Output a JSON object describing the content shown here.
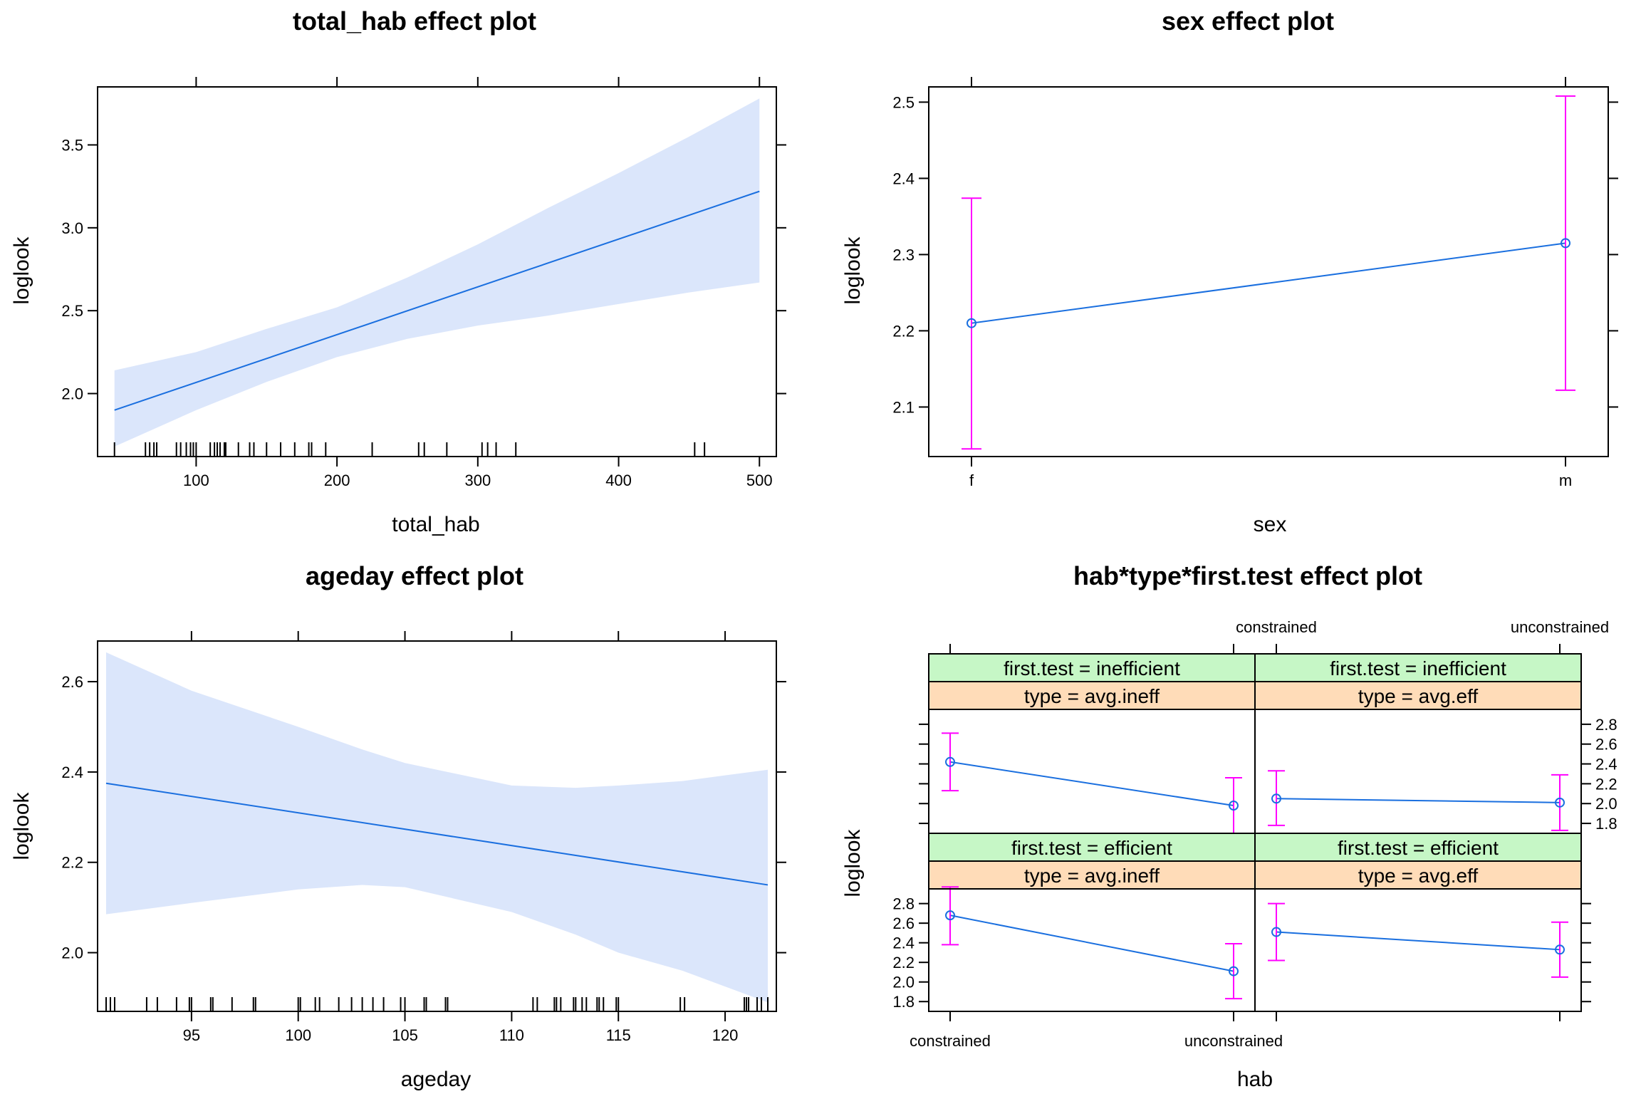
{
  "colors": {
    "line": "#1a6fdf",
    "band": "#dbe6fb",
    "errorbar": "#ff00ff",
    "strip_top": "#c6f7c6",
    "strip_bottom": "#ffdcb8",
    "frame": "#000000"
  },
  "chart_data": [
    {
      "id": "total_hab",
      "type": "line",
      "title": "total_hab effect plot",
      "xlabel": "total_hab",
      "ylabel": "loglook",
      "xlim": [
        30,
        512
      ],
      "ylim": [
        1.62,
        3.85
      ],
      "xticks": [
        100,
        200,
        300,
        400,
        500
      ],
      "yticks": [
        2.0,
        2.5,
        3.0,
        3.5
      ],
      "ytick_labels": [
        "2.0",
        "2.5",
        "3.0",
        "3.5"
      ],
      "line": {
        "x": [
          42,
          500
        ],
        "y": [
          1.9,
          3.22
        ]
      },
      "band": {
        "x": [
          42,
          100,
          150,
          200,
          250,
          300,
          350,
          400,
          450,
          500
        ],
        "lower": [
          1.68,
          1.9,
          2.07,
          2.22,
          2.33,
          2.41,
          2.47,
          2.54,
          2.61,
          2.67
        ],
        "upper": [
          2.14,
          2.25,
          2.39,
          2.52,
          2.7,
          2.9,
          3.12,
          3.33,
          3.55,
          3.78
        ]
      },
      "rug": [
        42,
        64,
        67,
        70,
        72,
        86,
        89,
        93,
        96,
        98,
        100,
        110,
        113,
        115,
        117,
        120,
        121,
        130,
        138,
        141,
        150,
        160,
        170,
        180,
        182,
        192,
        225,
        258,
        262,
        278,
        303,
        307,
        313,
        327,
        454,
        461
      ]
    },
    {
      "id": "sex",
      "type": "line",
      "title": "sex effect plot",
      "xlabel": "sex",
      "ylabel": "loglook",
      "categories": [
        "f",
        "m"
      ],
      "ylim": [
        2.035,
        2.52
      ],
      "yticks": [
        2.1,
        2.2,
        2.3,
        2.4,
        2.5
      ],
      "ytick_labels": [
        "2.1",
        "2.2",
        "2.3",
        "2.4",
        "2.5"
      ],
      "values": [
        2.21,
        2.315
      ],
      "lower": [
        2.045,
        2.122
      ],
      "upper": [
        2.374,
        2.508
      ]
    },
    {
      "id": "ageday",
      "type": "line",
      "title": "ageday effect plot",
      "xlabel": "ageday",
      "ylabel": "loglook",
      "xlim": [
        90.6,
        122.4
      ],
      "ylim": [
        1.87,
        2.69
      ],
      "xticks": [
        95,
        100,
        105,
        110,
        115,
        120
      ],
      "yticks": [
        2.0,
        2.2,
        2.4,
        2.6
      ],
      "ytick_labels": [
        "2.0",
        "2.2",
        "2.4",
        "2.6"
      ],
      "line": {
        "x": [
          91,
          122
        ],
        "y": [
          2.375,
          2.15
        ]
      },
      "band": {
        "x": [
          91,
          95,
          100,
          103,
          105,
          110,
          113,
          115,
          118,
          122
        ],
        "lower": [
          2.085,
          2.11,
          2.14,
          2.15,
          2.145,
          2.09,
          2.04,
          2.0,
          1.96,
          1.89
        ],
        "upper": [
          2.665,
          2.58,
          2.5,
          2.45,
          2.42,
          2.37,
          2.365,
          2.37,
          2.38,
          2.405
        ]
      },
      "rug": [
        91,
        91.2,
        91.4,
        92.9,
        93.4,
        94.3,
        94.9,
        95,
        95.9,
        96,
        96.9,
        97.9,
        98,
        100,
        100.1,
        100.8,
        101,
        101.9,
        102.5,
        103,
        103.5,
        104,
        104.8,
        105,
        105.9,
        106,
        106.9,
        107,
        111,
        111.2,
        112,
        112.1,
        112.3,
        112.9,
        113,
        113.3,
        113.5,
        114,
        114.1,
        114.3,
        114.9,
        115,
        117.9,
        118.1,
        120.9,
        121,
        121.1,
        121.5,
        121.7,
        122
      ]
    },
    {
      "id": "hab_type_first",
      "type": "line",
      "title": "hab*type*first.test effect plot",
      "xlabel": "hab",
      "ylabel": "loglook",
      "categories": [
        "constrained",
        "unconstrained"
      ],
      "ylim": [
        1.7,
        2.95
      ],
      "yticks": [
        1.8,
        2.0,
        2.2,
        2.4,
        2.6,
        2.8
      ],
      "ytick_labels": [
        "1.8",
        "2.0",
        "2.2",
        "2.4",
        "2.6",
        "2.8"
      ],
      "panels": [
        {
          "first_test": "first.test = inefficient",
          "type": "type = avg.ineff",
          "values": [
            2.42,
            1.98
          ],
          "lower": [
            2.13,
            1.7
          ],
          "upper": [
            2.71,
            2.26
          ]
        },
        {
          "first_test": "first.test = inefficient",
          "type": "type = avg.eff",
          "values": [
            2.05,
            2.01
          ],
          "lower": [
            1.78,
            1.73
          ],
          "upper": [
            2.33,
            2.29
          ]
        },
        {
          "first_test": "first.test = efficient",
          "type": "type = avg.ineff",
          "values": [
            2.68,
            2.11
          ],
          "lower": [
            2.38,
            1.83
          ],
          "upper": [
            2.97,
            2.39
          ]
        },
        {
          "first_test": "first.test = efficient",
          "type": "type = avg.eff",
          "values": [
            2.51,
            2.33
          ],
          "lower": [
            2.22,
            2.05
          ],
          "upper": [
            2.8,
            2.61
          ]
        }
      ]
    }
  ]
}
